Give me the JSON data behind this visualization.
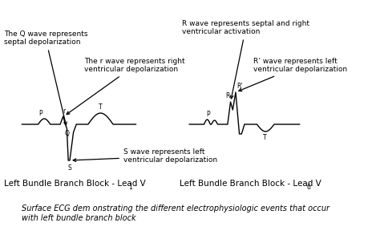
{
  "background_color": "#ffffff",
  "fs_annot": 6.5,
  "fs_label": 7.5,
  "fs_wave": 5.5,
  "fs_caption": 7,
  "ecg1_label": "Left Bundle Branch Block - Lead V",
  "ecg1_sub": "1",
  "ecg2_label": "Left Bundle Branch Block - Lead V",
  "ecg2_sub": "6",
  "caption": "Surface ECG dem onstrating the different electrophysiologic events that occur\nwith left bundle branch block",
  "annot1_text": "The Q wave represents\nseptal depolarization",
  "annot2_text": "The r wave represents right\nventricular depolarization",
  "annot3_text": "R wave represents septal and right\nventricular activation",
  "annot4_text": "R’ wave represents left\nventricular depolarization",
  "annot5_text": "S wave represents left\nventricular depolarization"
}
